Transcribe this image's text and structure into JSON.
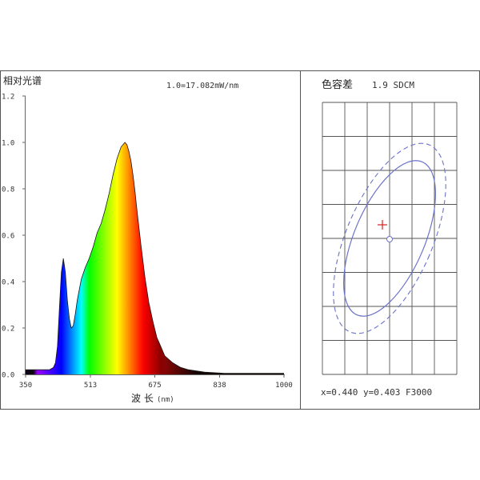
{
  "chart_data": [
    {
      "type": "area",
      "title": "相对光谱",
      "annotation": "1.0=17.082mW/nm",
      "xlabel": "波 长",
      "xlabel_unit": "(nm)",
      "ylabel": "",
      "xlim": [
        350,
        1000
      ],
      "ylim": [
        0,
        1.2
      ],
      "x_ticks": [
        "350",
        "513",
        "675",
        "838",
        "1000"
      ],
      "y_ticks": [
        "0.0",
        "0.2",
        "0.4",
        "0.6",
        "0.8",
        "1.0",
        "1.2"
      ],
      "grid": false,
      "fill": "visible-spectrum rainbow gradient under curve",
      "series": [
        {
          "x": [
            350,
            380,
            400,
            410,
            420,
            425,
            430,
            435,
            440,
            445,
            450,
            455,
            460,
            465,
            470,
            475,
            480,
            490,
            500,
            510,
            520,
            530,
            540,
            550,
            560,
            570,
            580,
            590,
            600,
            605,
            610,
            615,
            620,
            625,
            630,
            640,
            650,
            660,
            670,
            680,
            690,
            700,
            720,
            740,
            760,
            780,
            800,
            850,
            900,
            950,
            1000
          ],
          "values": [
            0.02,
            0.02,
            0.02,
            0.02,
            0.03,
            0.05,
            0.12,
            0.28,
            0.44,
            0.5,
            0.44,
            0.32,
            0.24,
            0.2,
            0.21,
            0.26,
            0.32,
            0.41,
            0.46,
            0.5,
            0.55,
            0.61,
            0.65,
            0.71,
            0.78,
            0.86,
            0.93,
            0.98,
            1.0,
            0.99,
            0.96,
            0.92,
            0.86,
            0.79,
            0.71,
            0.56,
            0.42,
            0.31,
            0.23,
            0.16,
            0.12,
            0.08,
            0.05,
            0.03,
            0.02,
            0.015,
            0.01,
            0.005,
            0.005,
            0.005,
            0.005
          ]
        }
      ]
    },
    {
      "type": "scatter",
      "title": "色容差",
      "sdcm": "1.9 SDCM",
      "footer": "x=0.440 y=0.403 F3000",
      "grid": true,
      "grid_cols": 6,
      "grid_rows": 8,
      "target_marker": "red cross",
      "measured_point": "small open circle",
      "ellipses": [
        "inner solid blue",
        "outer dashed blue"
      ],
      "colors": {
        "ellipse": "#6b73c8",
        "target": "#d62020"
      }
    }
  ]
}
